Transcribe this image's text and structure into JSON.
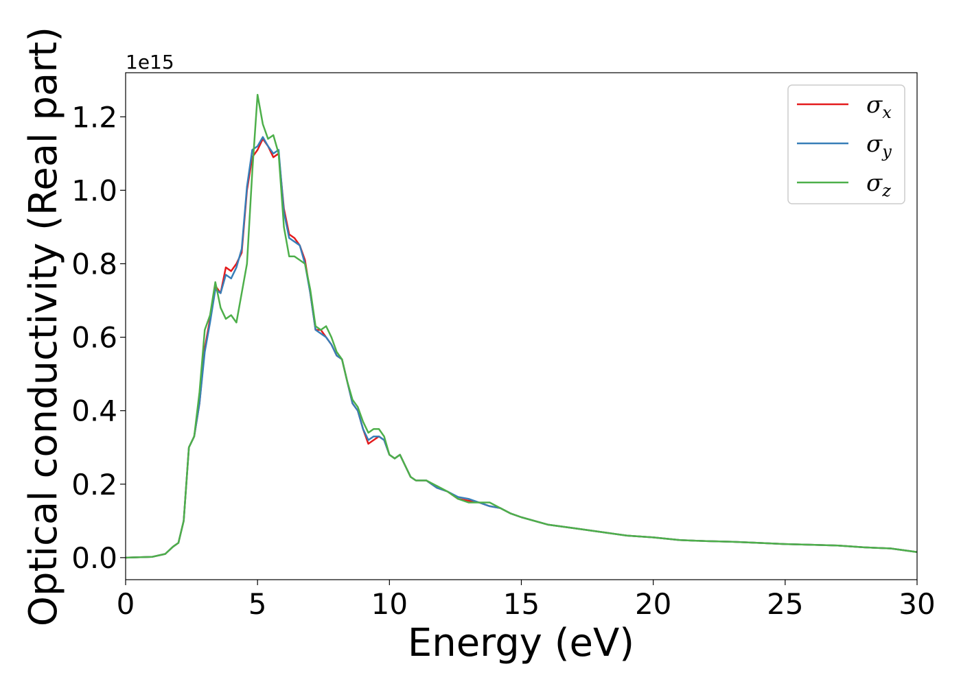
{
  "chart_data": {
    "type": "line",
    "xlabel": "Energy (eV)",
    "ylabel": "Optical conductivity (Real part)",
    "y_offset_label": "1e15",
    "y_scale": 1000000000000000.0,
    "xlim": [
      0,
      30
    ],
    "ylim": [
      -0.06,
      1.32
    ],
    "grid": false,
    "legend_position": "top-right",
    "x_ticks": [
      0,
      5,
      10,
      15,
      20,
      25,
      30
    ],
    "x_tick_labels": [
      "0",
      "5",
      "10",
      "15",
      "20",
      "25",
      "30"
    ],
    "y_ticks": [
      0.0,
      0.2,
      0.4,
      0.6,
      0.8,
      1.0,
      1.2
    ],
    "y_tick_labels": [
      "0.0",
      "0.2",
      "0.4",
      "0.6",
      "0.8",
      "1.0",
      "1.2"
    ],
    "series": [
      {
        "name": "σx",
        "symbol": "σ",
        "subscript": "x",
        "color": "#e41a1c",
        "x": [
          0,
          1,
          1.5,
          1.8,
          2.0,
          2.2,
          2.4,
          2.6,
          2.8,
          3.0,
          3.2,
          3.4,
          3.6,
          3.8,
          4.0,
          4.2,
          4.4,
          4.6,
          4.8,
          5.0,
          5.2,
          5.4,
          5.6,
          5.8,
          6.0,
          6.2,
          6.4,
          6.6,
          6.8,
          7.0,
          7.2,
          7.4,
          7.6,
          7.8,
          8.0,
          8.2,
          8.4,
          8.6,
          8.8,
          9.0,
          9.2,
          9.4,
          9.6,
          9.8,
          10.0,
          10.2,
          10.4,
          10.6,
          10.8,
          11.0,
          11.4,
          11.8,
          12.2,
          12.6,
          13.0,
          13.4,
          13.8,
          14.2,
          14.6,
          15.0,
          16,
          17,
          18,
          19,
          20,
          21,
          22,
          23,
          24,
          25,
          26,
          27,
          28,
          29,
          30
        ],
        "y": [
          0.0,
          0.002,
          0.01,
          0.03,
          0.04,
          0.1,
          0.3,
          0.33,
          0.42,
          0.57,
          0.65,
          0.74,
          0.72,
          0.79,
          0.78,
          0.8,
          0.83,
          1.0,
          1.09,
          1.11,
          1.14,
          1.12,
          1.09,
          1.1,
          0.95,
          0.88,
          0.87,
          0.85,
          0.81,
          0.72,
          0.62,
          0.62,
          0.6,
          0.58,
          0.55,
          0.54,
          0.48,
          0.42,
          0.4,
          0.35,
          0.31,
          0.32,
          0.33,
          0.32,
          0.28,
          0.27,
          0.28,
          0.25,
          0.22,
          0.21,
          0.21,
          0.19,
          0.18,
          0.16,
          0.155,
          0.15,
          0.14,
          0.135,
          0.12,
          0.11,
          0.09,
          0.08,
          0.07,
          0.06,
          0.055,
          0.048,
          0.045,
          0.043,
          0.04,
          0.037,
          0.035,
          0.033,
          0.028,
          0.025,
          0.015
        ]
      },
      {
        "name": "σy",
        "symbol": "σ",
        "subscript": "y",
        "color": "#377eb8",
        "x": [
          0,
          1,
          1.5,
          1.8,
          2.0,
          2.2,
          2.4,
          2.6,
          2.8,
          3.0,
          3.2,
          3.4,
          3.6,
          3.8,
          4.0,
          4.2,
          4.4,
          4.6,
          4.8,
          5.0,
          5.2,
          5.4,
          5.6,
          5.8,
          6.0,
          6.2,
          6.4,
          6.6,
          6.8,
          7.0,
          7.2,
          7.4,
          7.6,
          7.8,
          8.0,
          8.2,
          8.4,
          8.6,
          8.8,
          9.0,
          9.2,
          9.4,
          9.6,
          9.8,
          10.0,
          10.2,
          10.4,
          10.6,
          10.8,
          11.0,
          11.4,
          11.8,
          12.2,
          12.6,
          13.0,
          13.4,
          13.8,
          14.2,
          14.6,
          15.0,
          16,
          17,
          18,
          19,
          20,
          21,
          22,
          23,
          24,
          25,
          26,
          27,
          28,
          29,
          30
        ],
        "y": [
          0.0,
          0.002,
          0.01,
          0.03,
          0.04,
          0.1,
          0.3,
          0.33,
          0.42,
          0.56,
          0.64,
          0.73,
          0.72,
          0.77,
          0.76,
          0.79,
          0.84,
          1.01,
          1.11,
          1.12,
          1.145,
          1.12,
          1.1,
          1.11,
          0.94,
          0.87,
          0.86,
          0.85,
          0.8,
          0.72,
          0.62,
          0.61,
          0.6,
          0.58,
          0.55,
          0.54,
          0.48,
          0.42,
          0.4,
          0.35,
          0.32,
          0.33,
          0.33,
          0.32,
          0.28,
          0.27,
          0.28,
          0.25,
          0.22,
          0.21,
          0.21,
          0.19,
          0.18,
          0.165,
          0.16,
          0.15,
          0.14,
          0.135,
          0.12,
          0.11,
          0.09,
          0.08,
          0.07,
          0.06,
          0.055,
          0.048,
          0.045,
          0.043,
          0.04,
          0.037,
          0.035,
          0.033,
          0.028,
          0.025,
          0.015
        ]
      },
      {
        "name": "σz",
        "symbol": "σ",
        "subscript": "z",
        "color": "#4daf4a",
        "x": [
          0,
          1,
          1.5,
          1.8,
          2.0,
          2.2,
          2.4,
          2.6,
          2.8,
          3.0,
          3.2,
          3.4,
          3.6,
          3.8,
          4.0,
          4.2,
          4.4,
          4.6,
          4.8,
          5.0,
          5.2,
          5.4,
          5.6,
          5.8,
          6.0,
          6.2,
          6.4,
          6.6,
          6.8,
          7.0,
          7.2,
          7.4,
          7.6,
          7.8,
          8.0,
          8.2,
          8.4,
          8.6,
          8.8,
          9.0,
          9.2,
          9.4,
          9.6,
          9.8,
          10.0,
          10.2,
          10.4,
          10.6,
          10.8,
          11.0,
          11.4,
          11.8,
          12.2,
          12.6,
          13.0,
          13.4,
          13.8,
          14.2,
          14.6,
          15.0,
          16,
          17,
          18,
          19,
          20,
          21,
          22,
          23,
          24,
          25,
          26,
          27,
          28,
          29,
          30
        ],
        "y": [
          0.0,
          0.002,
          0.01,
          0.03,
          0.04,
          0.1,
          0.3,
          0.33,
          0.45,
          0.62,
          0.66,
          0.75,
          0.68,
          0.65,
          0.66,
          0.64,
          0.72,
          0.8,
          1.05,
          1.26,
          1.18,
          1.14,
          1.15,
          1.1,
          0.9,
          0.82,
          0.82,
          0.81,
          0.8,
          0.73,
          0.63,
          0.62,
          0.63,
          0.6,
          0.56,
          0.54,
          0.48,
          0.43,
          0.41,
          0.37,
          0.34,
          0.35,
          0.35,
          0.33,
          0.28,
          0.27,
          0.28,
          0.25,
          0.22,
          0.21,
          0.21,
          0.195,
          0.18,
          0.16,
          0.15,
          0.15,
          0.15,
          0.135,
          0.12,
          0.11,
          0.09,
          0.08,
          0.07,
          0.06,
          0.055,
          0.048,
          0.045,
          0.043,
          0.04,
          0.037,
          0.035,
          0.033,
          0.028,
          0.025,
          0.015
        ]
      }
    ]
  }
}
